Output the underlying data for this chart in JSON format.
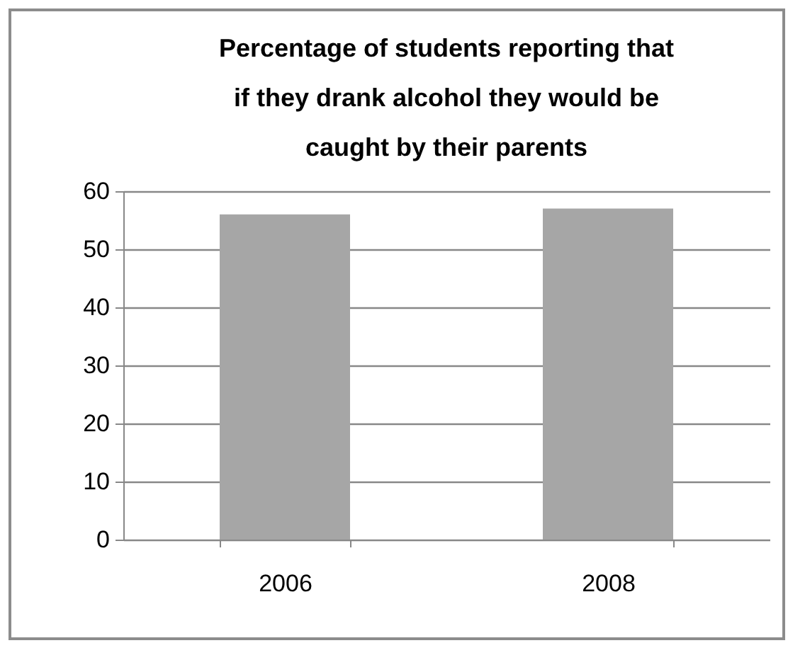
{
  "chart_data": {
    "type": "bar",
    "title": "Percentage of students reporting that if they drank alcohol they would be caught by their parents",
    "categories": [
      "2006",
      "2008"
    ],
    "values": [
      56,
      57
    ],
    "color": "#a6a6a6",
    "ylim": [
      0,
      60
    ],
    "yticks": [
      0,
      10,
      20,
      30,
      40,
      50,
      60
    ],
    "grid": "y"
  }
}
